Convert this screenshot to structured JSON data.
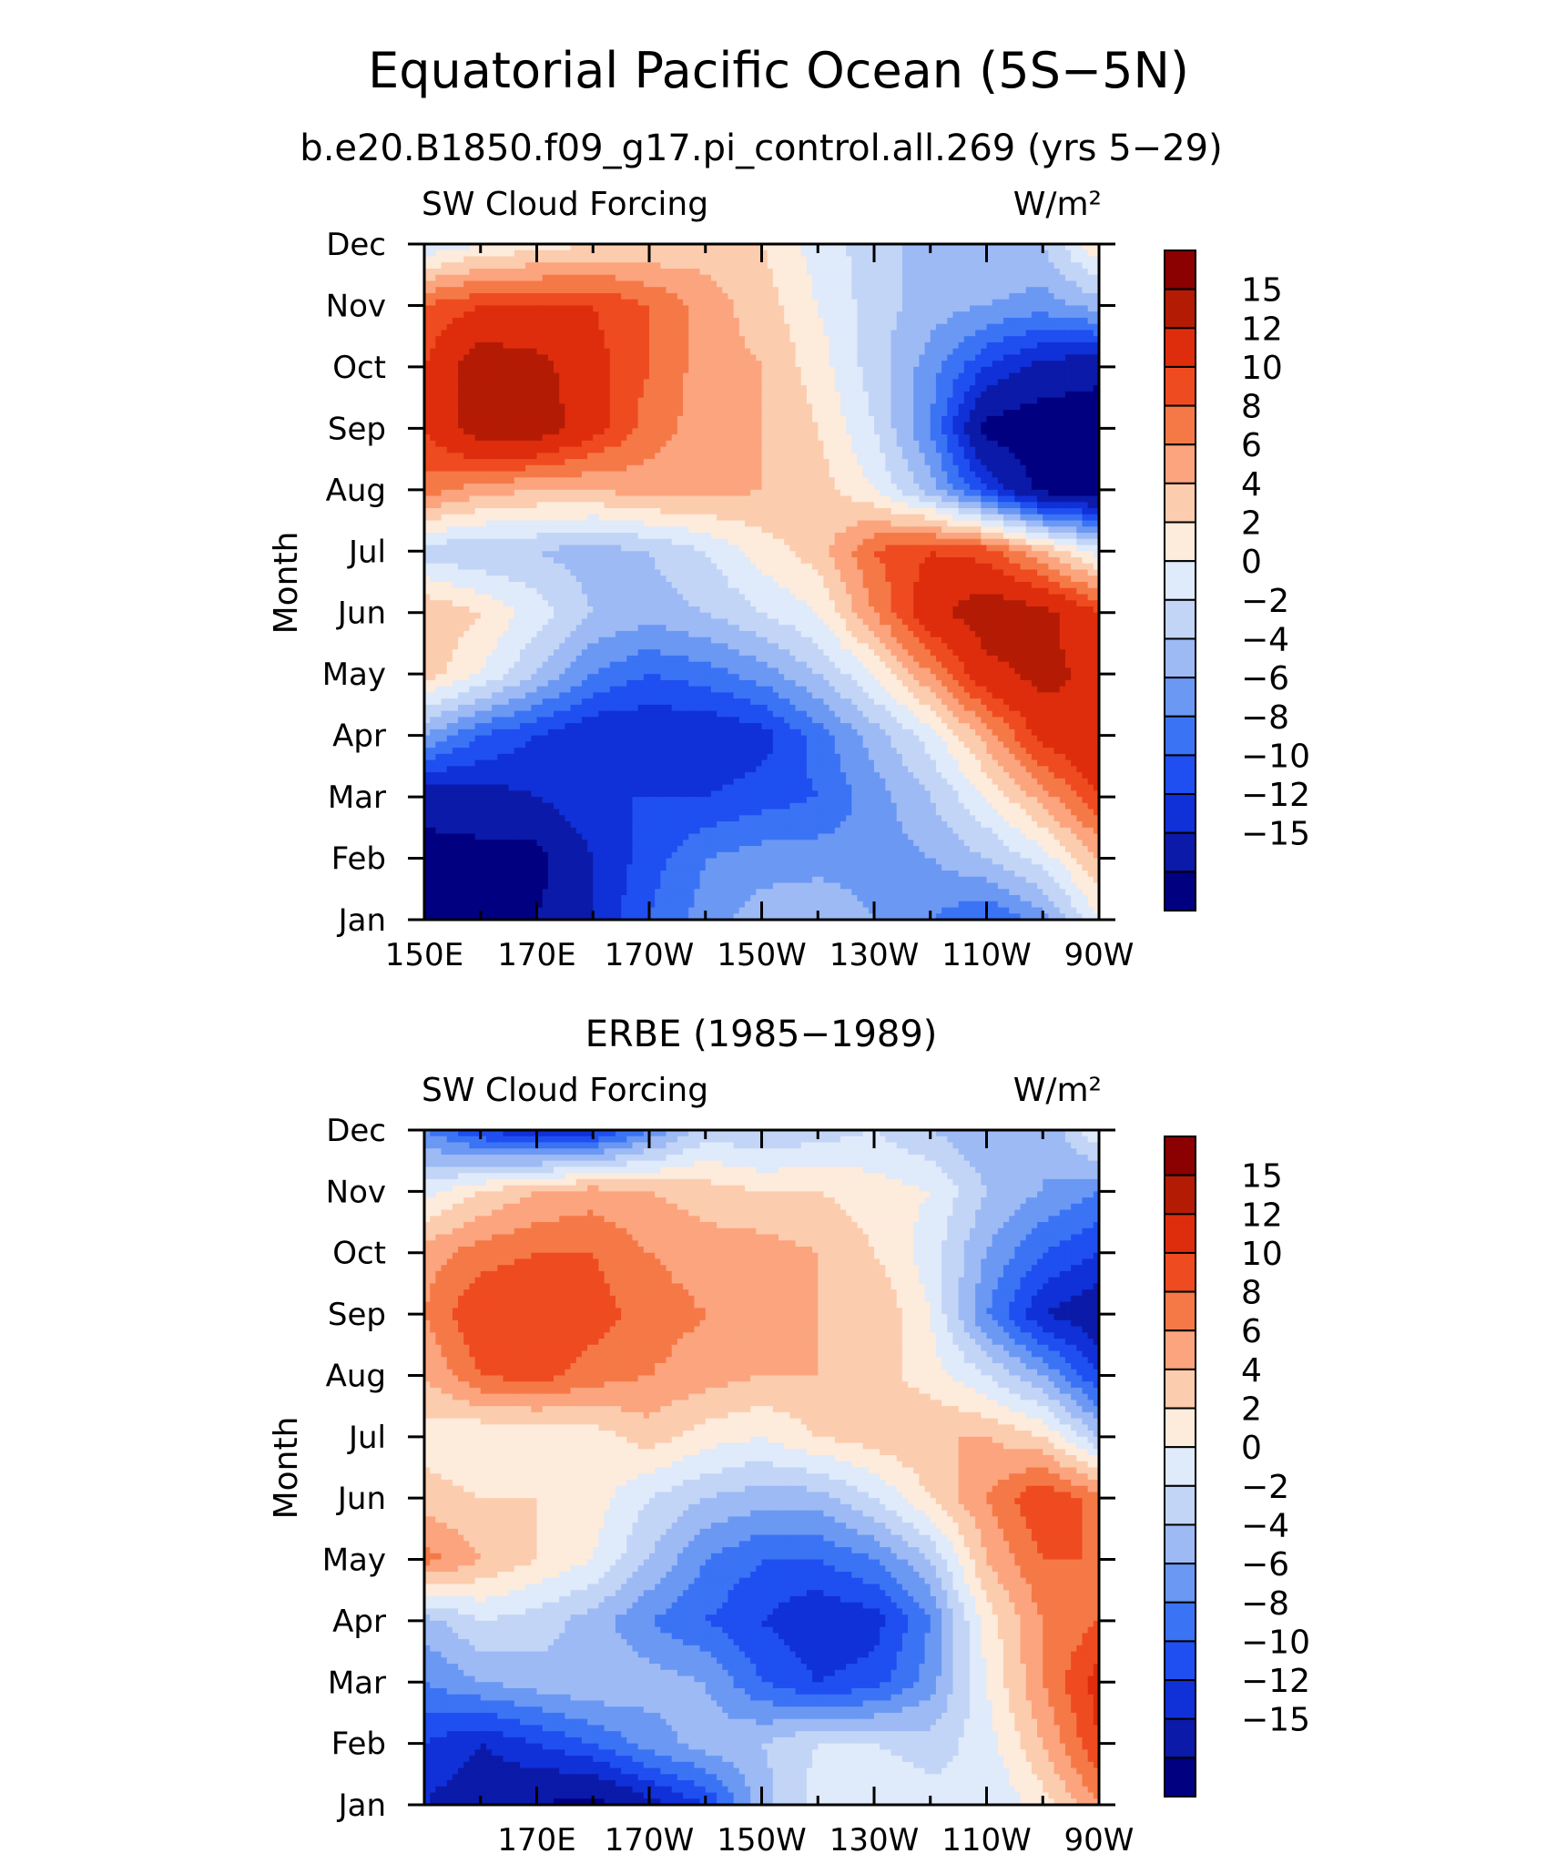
{
  "figure": {
    "title": "Equatorial Pacific Ocean (5S−5N)"
  },
  "colorbar": {
    "colors": [
      "#000080",
      "#0b1aa8",
      "#1030d8",
      "#1f4ff0",
      "#3b73f5",
      "#6b98f3",
      "#9dbaf5",
      "#c3d5f6",
      "#dfeafb",
      "#fdebdc",
      "#fcccae",
      "#fba47e",
      "#f57947",
      "#ef4b20",
      "#de2d0c",
      "#b41b05",
      "#8b0000"
    ],
    "level_labels": [
      "15",
      "12",
      "10",
      "8",
      "6",
      "4",
      "2",
      "0",
      "−2",
      "−4",
      "−6",
      "−8",
      "−10",
      "−12",
      "−15"
    ]
  },
  "chart_data": [
    {
      "type": "heatmap",
      "title": "b.e20.B1850.f09_g17.pi_control.all.269 (yrs 5−29)",
      "left_label": "SW Cloud Forcing",
      "units": "W/m²",
      "ylabel": "Month",
      "xlabel": "",
      "x_ticks": [
        "150E",
        "170E",
        "170W",
        "150W",
        "130W",
        "110W",
        "90W"
      ],
      "x_tick_values": [
        150,
        170,
        190,
        210,
        230,
        250,
        270
      ],
      "xlim": [
        150,
        270
      ],
      "y_ticks": [
        "Jan",
        "Feb",
        "Mar",
        "Apr",
        "May",
        "Jun",
        "Jul",
        "Aug",
        "Sep",
        "Oct",
        "Nov",
        "Dec"
      ],
      "ylim": [
        1,
        12
      ],
      "levels": [
        -15,
        -12,
        -10,
        -8,
        -6,
        -4,
        -2,
        0,
        2,
        4,
        6,
        8,
        10,
        12,
        15
      ],
      "grid_lon": [
        150,
        160,
        170,
        180,
        190,
        200,
        210,
        220,
        230,
        240,
        250,
        260,
        270
      ],
      "grid_month": [
        "Jan",
        "Feb",
        "Mar",
        "Apr",
        "May",
        "Jun",
        "Jul",
        "Aug",
        "Sep",
        "Oct",
        "Nov",
        "Dec"
      ],
      "values": [
        [
          -16,
          -16,
          -15,
          -12,
          -8,
          -5,
          -3,
          -2,
          -4,
          -6,
          -8,
          -5,
          2
        ],
        [
          -16,
          -16,
          -16,
          -12,
          -9,
          -6,
          -5,
          -5,
          -5,
          -4,
          -2,
          1,
          6
        ],
        [
          -14,
          -13,
          -12,
          -10,
          -10,
          -10,
          -9,
          -8,
          -5,
          -2,
          2,
          7,
          12
        ],
        [
          -4,
          -8,
          -10,
          -12,
          -12,
          -12,
          -11,
          -7,
          -3,
          1,
          7,
          13,
          15
        ],
        [
          5,
          2,
          -2,
          -6,
          -8,
          -7,
          -5,
          -2,
          2,
          8,
          14,
          16,
          14
        ],
        [
          6,
          4,
          1,
          -2,
          -3,
          -2,
          0,
          2,
          8,
          14,
          17,
          16,
          12
        ],
        [
          -1,
          -2,
          -2,
          -3,
          -2,
          0,
          3,
          5,
          10,
          12,
          11,
          6,
          1
        ],
        [
          9,
          7,
          6,
          6,
          7,
          7,
          6,
          5,
          2,
          -3,
          -10,
          -16,
          -17
        ],
        [
          12,
          17,
          17,
          13,
          9,
          7,
          6,
          4,
          0,
          -6,
          -16,
          -17,
          -17
        ],
        [
          12,
          17,
          16,
          13,
          10,
          7,
          6,
          3,
          -1,
          -5,
          -10,
          -13,
          -14
        ],
        [
          10,
          12,
          12,
          12,
          10,
          7,
          5,
          2,
          -1,
          -3,
          -4,
          -5,
          -3
        ],
        [
          0,
          2,
          3,
          4,
          4,
          5,
          4,
          1,
          -1,
          -3,
          -2,
          -2,
          4
        ]
      ]
    },
    {
      "type": "heatmap",
      "title": "ERBE (1985−1989)",
      "left_label": "SW Cloud Forcing",
      "units": "W/m²",
      "ylabel": "Month",
      "xlabel": "",
      "x_ticks": [
        "170E",
        "170W",
        "150W",
        "130W",
        "110W",
        "90W"
      ],
      "x_tick_values": [
        170,
        190,
        210,
        230,
        250,
        270
      ],
      "xlim": [
        150,
        270
      ],
      "y_ticks": [
        "Jan",
        "Feb",
        "Mar",
        "Apr",
        "May",
        "Jun",
        "Jul",
        "Aug",
        "Sep",
        "Oct",
        "Nov",
        "Dec"
      ],
      "ylim": [
        1,
        12
      ],
      "levels": [
        -15,
        -12,
        -10,
        -8,
        -6,
        -4,
        -2,
        0,
        2,
        4,
        6,
        8,
        10,
        12,
        15
      ],
      "grid_lon": [
        150,
        160,
        170,
        180,
        190,
        200,
        210,
        220,
        230,
        240,
        250,
        260,
        270
      ],
      "grid_month": [
        "Jan",
        "Feb",
        "Mar",
        "Apr",
        "May",
        "Jun",
        "Jul",
        "Aug",
        "Sep",
        "Oct",
        "Nov",
        "Dec"
      ],
      "values": [
        [
          -12,
          -14,
          -15,
          -16,
          -13,
          -10,
          -3,
          1,
          2,
          1,
          0,
          3,
          8
        ],
        [
          -10,
          -12,
          -10,
          -8,
          -5,
          -3,
          -2,
          0,
          0,
          -1,
          1,
          6,
          12
        ],
        [
          -6,
          -4,
          -3,
          -2,
          -3,
          -4,
          -8,
          -10,
          -9,
          -5,
          2,
          8,
          13
        ],
        [
          -3,
          0,
          -1,
          -3,
          -6,
          -8,
          -10,
          -12,
          -11,
          -6,
          3,
          8,
          10
        ],
        [
          9,
          6,
          4,
          2,
          -2,
          -6,
          -8,
          -8,
          -6,
          -2,
          6,
          10,
          10
        ],
        [
          5,
          4,
          4,
          3,
          0,
          -2,
          -3,
          -3,
          0,
          4,
          8,
          12,
          9
        ],
        [
          3,
          2,
          2,
          3,
          5,
          3,
          2,
          4,
          5,
          6,
          6,
          4,
          -2
        ],
        [
          6,
          10,
          11,
          9,
          8,
          7,
          6,
          6,
          5,
          3,
          0,
          -4,
          -10
        ],
        [
          8,
          12,
          12,
          11,
          9,
          8,
          7,
          6,
          6,
          2,
          -6,
          -12,
          -14
        ],
        [
          7,
          9,
          10,
          10,
          8,
          7,
          7,
          6,
          4,
          1,
          -4,
          -8,
          -10
        ],
        [
          1,
          4,
          6,
          7,
          6,
          5,
          4,
          4,
          3,
          2,
          -2,
          -4,
          -6
        ],
        [
          -6,
          -10,
          -12,
          -11,
          -6,
          -1,
          -2,
          -1,
          0,
          -2,
          -4,
          -4,
          2
        ]
      ]
    }
  ]
}
